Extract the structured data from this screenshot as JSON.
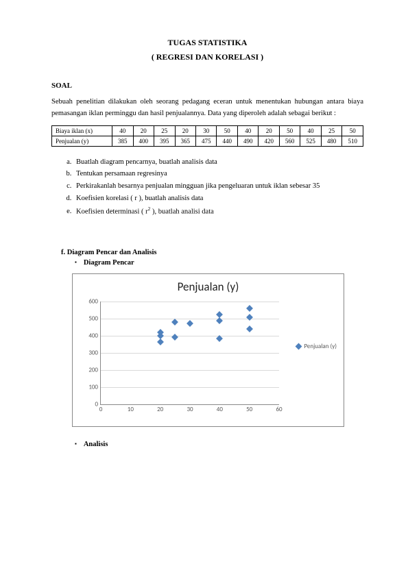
{
  "title": "TUGAS STATISTIKA",
  "subtitle": "( REGRESI DAN KORELASI )",
  "soal_heading": "SOAL",
  "intro_text": "Sebuah penelitian dilakukan oleh seorang pedagang eceran untuk menentukan hubungan antara biaya pemasangan iklan perminggu dan hasil penjualannya. Data yang diperoleh adalah sebagai berikut :",
  "table": {
    "row1_label": "Biaya iklan (x)",
    "row2_label": "Penjualan (y)",
    "x": [
      40,
      20,
      25,
      20,
      30,
      50,
      40,
      20,
      50,
      40,
      25,
      50
    ],
    "y": [
      385,
      400,
      395,
      365,
      475,
      440,
      490,
      420,
      560,
      525,
      480,
      510
    ]
  },
  "questions": {
    "a": "Buatlah diagram pencarnya, buatlah analisis data",
    "b": "Tentukan persamaan  regresinya",
    "c": "Perkirakanlah besarnya penjualan mingguan jika pengeluaran untuk iklan sebesar 35",
    "d": "Koefisien korelasi ( r ), buatlah analisis data",
    "e_prefix": "Koefisien determinasi ( r",
    "e_suffix": " ), buatlah analisi data"
  },
  "section_f": {
    "heading": "f.    Diagram Pencar dan Analisis",
    "bullet1": "Diagram Pencar",
    "bullet2": "Analisis"
  },
  "chart": {
    "title": "Penjualan (y)",
    "type": "scatter",
    "xlim": [
      0,
      60
    ],
    "xtick_step": 10,
    "ylim": [
      0,
      600
    ],
    "ytick_step": 100,
    "marker_color": "#4f81bd",
    "grid_color": "#d9d9d9",
    "border_color": "#888888",
    "background": "#ffffff",
    "label_color": "#595959",
    "label_fontsize": 9,
    "title_fontsize": 17,
    "legend_label": "Penjualan (y)",
    "points": [
      {
        "x": 40,
        "y": 385
      },
      {
        "x": 20,
        "y": 400
      },
      {
        "x": 25,
        "y": 395
      },
      {
        "x": 20,
        "y": 365
      },
      {
        "x": 30,
        "y": 475
      },
      {
        "x": 50,
        "y": 440
      },
      {
        "x": 40,
        "y": 490
      },
      {
        "x": 20,
        "y": 420
      },
      {
        "x": 50,
        "y": 560
      },
      {
        "x": 40,
        "y": 525
      },
      {
        "x": 25,
        "y": 480
      },
      {
        "x": 50,
        "y": 510
      }
    ]
  }
}
